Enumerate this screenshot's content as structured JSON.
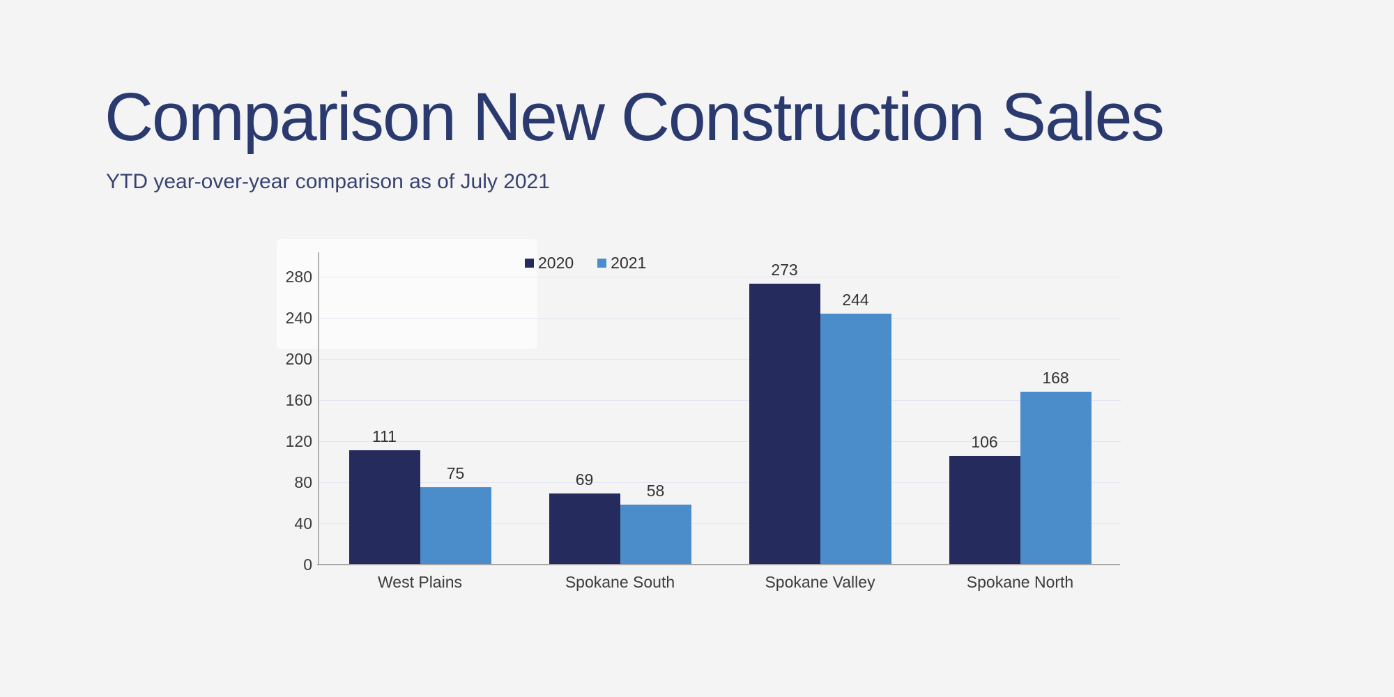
{
  "slide": {
    "title": "Comparison New Construction Sales",
    "subtitle": "YTD year-over-year comparison as of July 2021"
  },
  "chart_data": {
    "type": "bar",
    "title": "",
    "xlabel": "",
    "ylabel": "",
    "categories": [
      "West Plains",
      "Spokane South",
      "Spokane Valley",
      "Spokane North"
    ],
    "series": [
      {
        "name": "2020",
        "color": "#262b5e",
        "values": [
          111,
          69,
          273,
          106
        ]
      },
      {
        "name": "2021",
        "color": "#4b8dca",
        "values": [
          75,
          58,
          244,
          168
        ]
      }
    ],
    "yticks": [
      0,
      40,
      80,
      120,
      160,
      200,
      240,
      280
    ],
    "ylim": [
      0,
      300
    ],
    "grid": true,
    "legend_position": "top",
    "data_labels": true
  },
  "colors": {
    "background": "#f4f4f5",
    "title_text": "#2b3a6e",
    "subtitle_text": "#37436f",
    "axis_line": "#a7a7aa",
    "gridline": "#e2e5f0",
    "tick_text": "#3a3a3a",
    "series_2020": "#262b5e",
    "series_2021": "#4b8dca"
  }
}
